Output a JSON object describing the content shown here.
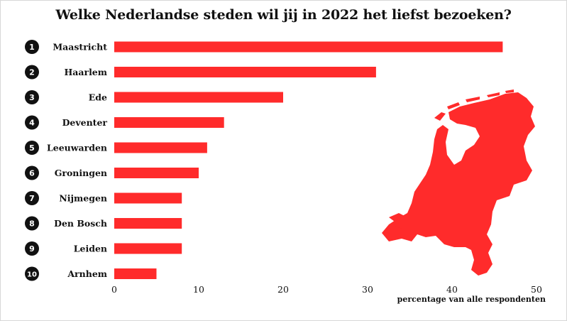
{
  "title": "Welke Nederlandse steden wil jij in 2022 het liefst bezoeken?",
  "chart_data": {
    "type": "bar",
    "orientation": "horizontal",
    "title": "Welke Nederlandse steden wil jij in 2022 het liefst bezoeken?",
    "xlabel": "percentage van alle respondenten",
    "ylabel": "",
    "ranks": [
      "1",
      "2",
      "3",
      "4",
      "5",
      "6",
      "7",
      "8",
      "9",
      "10"
    ],
    "categories": [
      "Maastricht",
      "Haarlem",
      "Ede",
      "Deventer",
      "Leeuwarden",
      "Groningen",
      "Nijmegen",
      "Den Bosch",
      "Leiden",
      "Arnhem"
    ],
    "values": [
      46,
      31,
      20,
      13,
      11,
      10,
      8,
      8,
      8,
      5
    ],
    "xlim": [
      0,
      50
    ],
    "xticks": [
      0,
      10,
      20,
      30,
      40,
      50
    ],
    "grid": false,
    "bar_color": "#ff2b2b",
    "rank_badge_color": "#111111"
  },
  "decoration": {
    "map_icon": "netherlands-map-icon",
    "map_color": "#ff2b2b"
  }
}
